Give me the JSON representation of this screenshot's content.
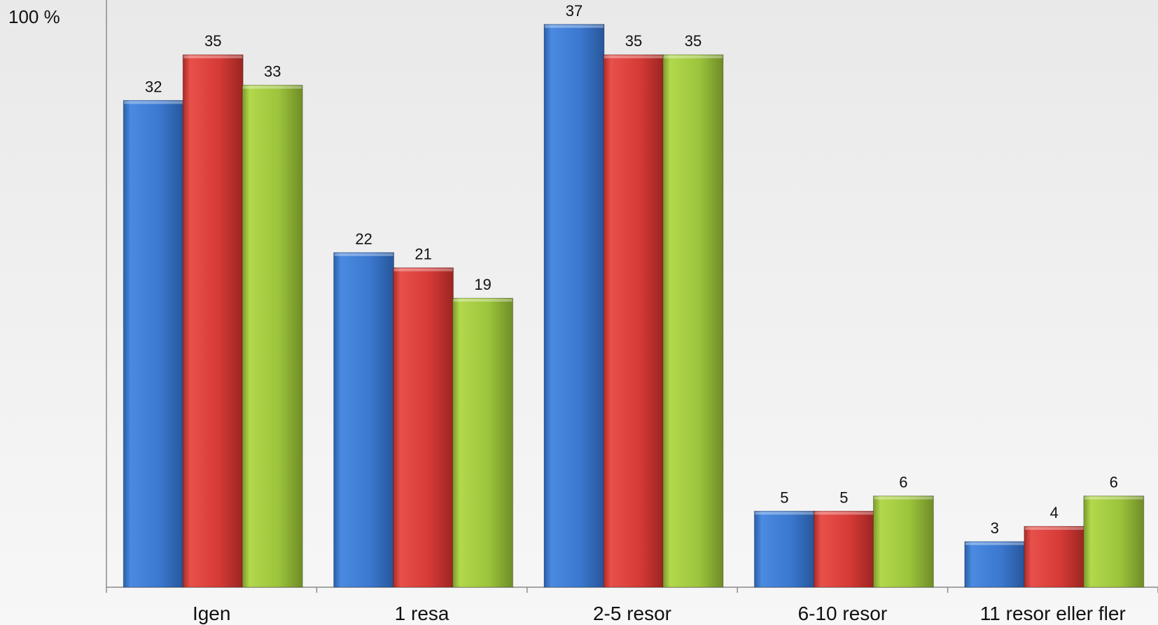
{
  "chart_data": {
    "type": "bar",
    "y_axis_top_label": "100 %",
    "categories": [
      "Igen",
      "1 resa",
      "2-5 resor",
      "6-10 resor",
      "11 resor eller fler"
    ],
    "series": [
      {
        "values": [
          32,
          22,
          37,
          5,
          3
        ],
        "color": "#3b78cf"
      },
      {
        "values": [
          35,
          21,
          35,
          5,
          4
        ],
        "color": "#d63a36"
      },
      {
        "values": [
          33,
          19,
          35,
          6,
          6
        ],
        "color": "#9cc43c"
      }
    ],
    "ylim": [
      0,
      38.6
    ],
    "grid": false,
    "legend": "none"
  }
}
